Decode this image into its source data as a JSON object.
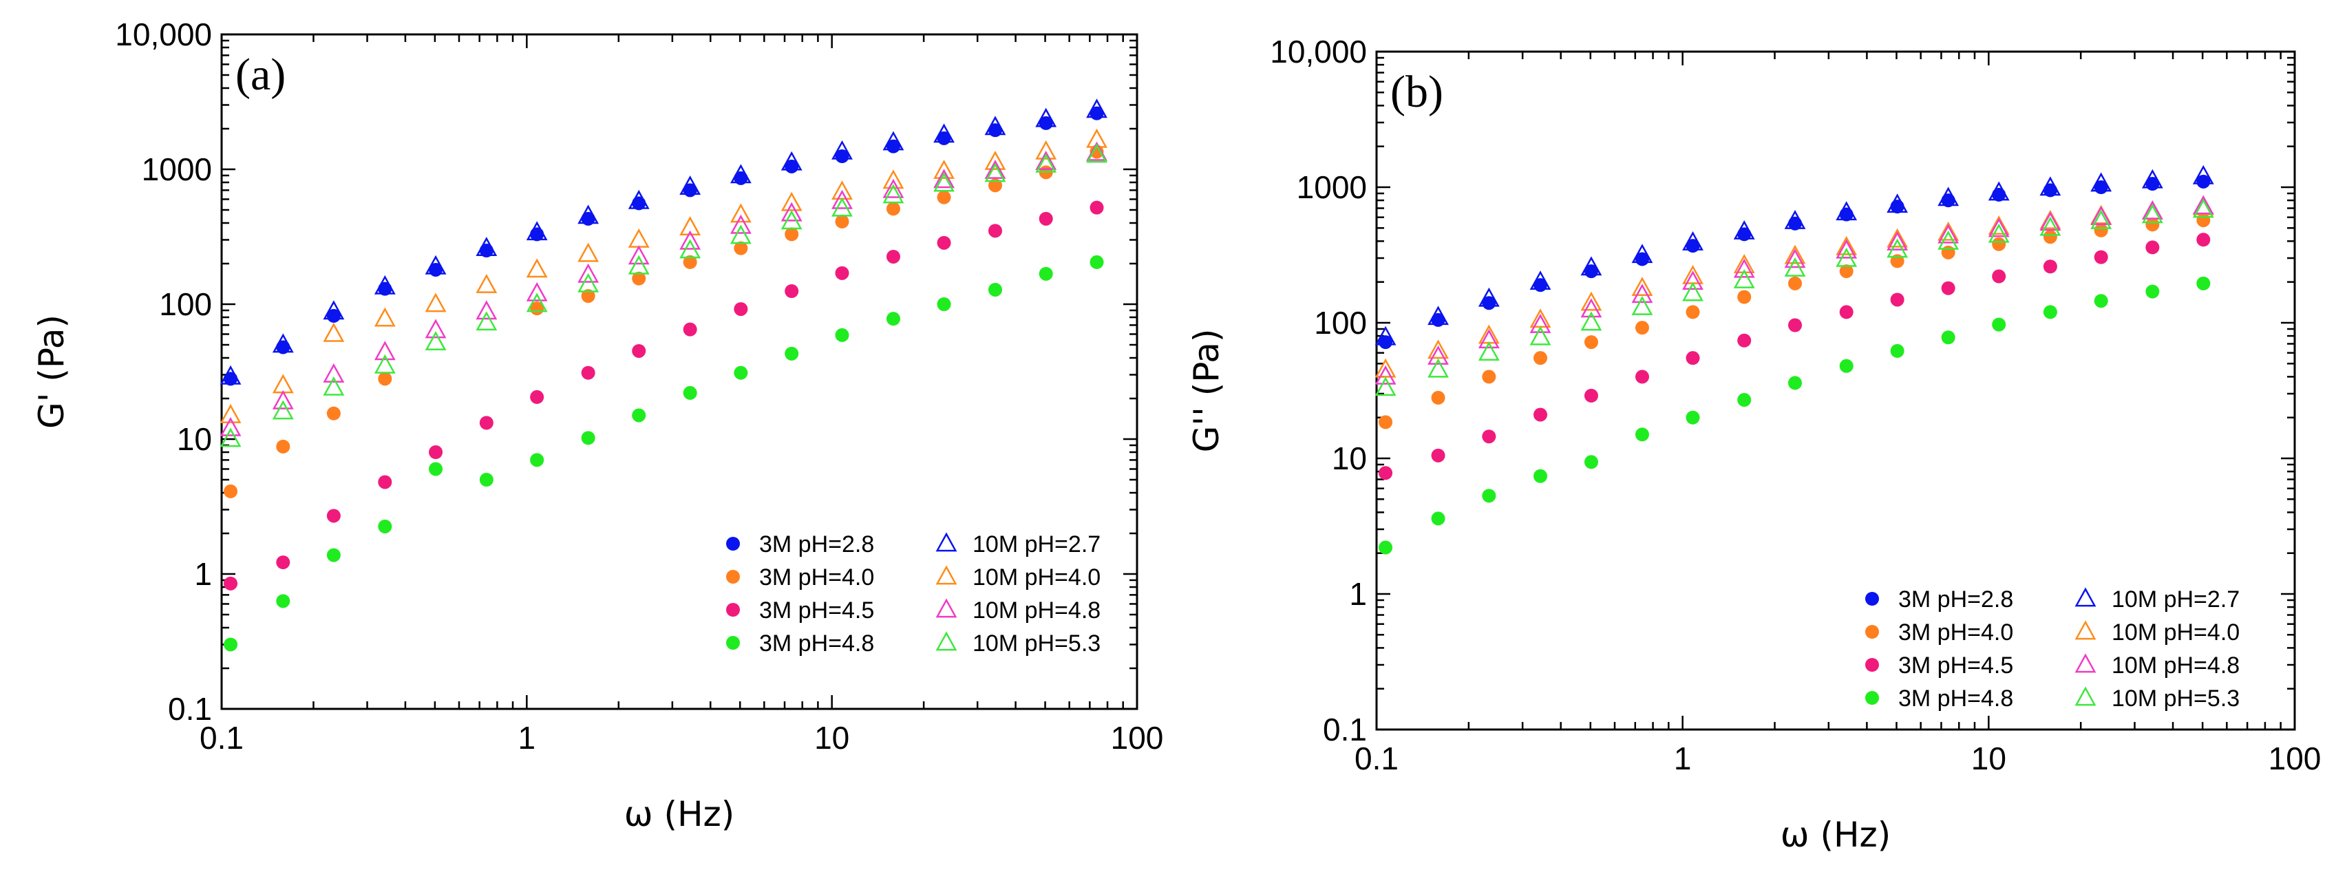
{
  "chart_data": [
    {
      "type": "scatter",
      "panel_label": "(a)",
      "xscale": "log",
      "yscale": "log",
      "xlabel": "ω (Hz)",
      "ylabel": "G' (Pa)",
      "xlim": [
        0.1,
        100
      ],
      "ylim": [
        0.1,
        10000
      ],
      "xticks": [
        0.1,
        1,
        10,
        100
      ],
      "xtick_labels": [
        "0.1",
        "1",
        "10",
        "100"
      ],
      "yticks": [
        0.1,
        1,
        10,
        100,
        1000,
        10000
      ],
      "ytick_labels": [
        "0.1",
        "1",
        "10",
        "100",
        "1000",
        "10,000"
      ],
      "legend_position": "bottom-right",
      "x": [
        0.107,
        0.159,
        0.233,
        0.343,
        0.503,
        0.738,
        1.08,
        1.59,
        2.33,
        3.43,
        5.03,
        7.38,
        10.8,
        15.9,
        23.3,
        34.3,
        50.3,
        73.8
      ],
      "series": [
        {
          "name": "3M pH=2.8",
          "marker": "filled-circle",
          "color": "#0a14ee",
          "values": [
            28,
            48,
            82,
            130,
            180,
            250,
            330,
            430,
            560,
            700,
            860,
            1050,
            1250,
            1480,
            1700,
            1950,
            2200,
            2600
          ]
        },
        {
          "name": "3M pH=4.0",
          "marker": "filled-circle",
          "color": "#ff7f1f",
          "values": [
            4.1,
            8.8,
            15.5,
            28,
            null,
            null,
            93,
            115,
            155,
            205,
            260,
            330,
            410,
            510,
            620,
            760,
            950,
            1350
          ]
        },
        {
          "name": "3M pH=4.5",
          "marker": "filled-circle",
          "color": "#f01a7d",
          "values": [
            0.85,
            1.22,
            2.7,
            4.8,
            8,
            13.2,
            20.5,
            31,
            45,
            65,
            92,
            125,
            170,
            225,
            285,
            350,
            430,
            520
          ]
        },
        {
          "name": "3M pH=4.8",
          "marker": "filled-circle",
          "color": "#1fec1f",
          "values": [
            0.3,
            0.63,
            1.38,
            2.25,
            6,
            5,
            7,
            10.2,
            15,
            22,
            31,
            43,
            59,
            78,
            100,
            128,
            168,
            205
          ]
        },
        {
          "name": "10M pH=2.7",
          "marker": "open-triangle",
          "color": "#0a14ee",
          "values": [
            29,
            50,
            88,
            135,
            190,
            260,
            340,
            450,
            580,
            740,
            900,
            1120,
            1350,
            1580,
            1800,
            2050,
            2350,
            2750
          ]
        },
        {
          "name": "10M pH=4.0",
          "marker": "open-triangle",
          "color": "#ff8c1a",
          "values": [
            15,
            25,
            60,
            78,
            100,
            138,
            180,
            235,
            300,
            370,
            460,
            560,
            680,
            820,
            970,
            1130,
            1350,
            1650
          ]
        },
        {
          "name": "10M pH=4.8",
          "marker": "open-triangle",
          "color": "#f03cc8",
          "values": [
            12,
            19,
            30,
            44,
            64,
            88,
            120,
            165,
            225,
            290,
            380,
            470,
            580,
            700,
            830,
            970,
            1130,
            1320
          ]
        },
        {
          "name": "10M pH=5.3",
          "marker": "open-triangle",
          "color": "#3ee83e",
          "values": [
            10,
            16,
            24,
            35,
            52,
            73,
            100,
            140,
            190,
            250,
            320,
            410,
            510,
            640,
            780,
            920,
            1080,
            1280
          ]
        }
      ]
    },
    {
      "type": "scatter",
      "panel_label": "(b)",
      "xscale": "log",
      "yscale": "log",
      "xlabel": "ω (Hz)",
      "ylabel": "G'' (Pa)",
      "xlim": [
        0.1,
        100
      ],
      "ylim": [
        0.1,
        10000
      ],
      "xticks": [
        0.1,
        1,
        10,
        100
      ],
      "xtick_labels": [
        "0.1",
        "1",
        "10",
        "100"
      ],
      "yticks": [
        0.1,
        1,
        10,
        100,
        1000,
        10000
      ],
      "ytick_labels": [
        "0.1",
        "1",
        "10",
        "100",
        "1000",
        "10,000"
      ],
      "legend_position": "bottom-right",
      "x": [
        0.107,
        0.159,
        0.233,
        0.343,
        0.503,
        0.738,
        1.08,
        1.59,
        2.33,
        3.43,
        5.03,
        7.38,
        10.8,
        15.9,
        23.3,
        34.3,
        50.3
      ],
      "series": [
        {
          "name": "3M pH=2.8",
          "marker": "filled-circle",
          "color": "#0a14ee",
          "values": [
            72,
            105,
            140,
            190,
            240,
            295,
            370,
            450,
            540,
            630,
            720,
            800,
            880,
            950,
            1000,
            1060,
            1100
          ]
        },
        {
          "name": "3M pH=4.0",
          "marker": "filled-circle",
          "color": "#ff7f1f",
          "values": [
            18.5,
            28,
            40,
            55,
            72,
            92,
            120,
            155,
            195,
            240,
            285,
            330,
            380,
            430,
            480,
            530,
            570
          ]
        },
        {
          "name": "3M pH=4.5",
          "marker": "filled-circle",
          "color": "#f01a7d",
          "values": [
            7.8,
            10.5,
            14.5,
            21,
            29,
            40,
            55,
            74,
            96,
            120,
            148,
            180,
            220,
            260,
            305,
            360,
            410
          ]
        },
        {
          "name": "3M pH=4.8",
          "marker": "filled-circle",
          "color": "#1fec1f",
          "values": [
            2.2,
            3.6,
            5.3,
            7.4,
            9.4,
            15,
            20,
            27,
            36,
            48,
            62,
            78,
            97,
            120,
            145,
            170,
            195
          ]
        },
        {
          "name": "10M pH=2.7",
          "marker": "open-triangle",
          "color": "#0a14ee",
          "values": [
            78,
            110,
            150,
            200,
            255,
            315,
            390,
            470,
            560,
            650,
            740,
            830,
            910,
            990,
            1060,
            1120,
            1200
          ]
        },
        {
          "name": "10M pH=4.0",
          "marker": "open-triangle",
          "color": "#ff8c1a",
          "values": [
            45,
            62,
            80,
            105,
            140,
            180,
            220,
            265,
            310,
            360,
            410,
            460,
            510,
            560,
            610,
            660,
            710
          ]
        },
        {
          "name": "10M pH=4.8",
          "marker": "open-triangle",
          "color": "#f03cc8",
          "values": [
            40,
            56,
            74,
            96,
            125,
            160,
            200,
            245,
            290,
            340,
            390,
            440,
            490,
            545,
            600,
            660,
            720
          ]
        },
        {
          "name": "10M pH=5.3",
          "marker": "open-triangle",
          "color": "#3ee83e",
          "values": [
            33,
            45,
            60,
            78,
            100,
            130,
            165,
            205,
            250,
            295,
            345,
            395,
            445,
            500,
            560,
            620,
            680
          ]
        }
      ]
    }
  ]
}
